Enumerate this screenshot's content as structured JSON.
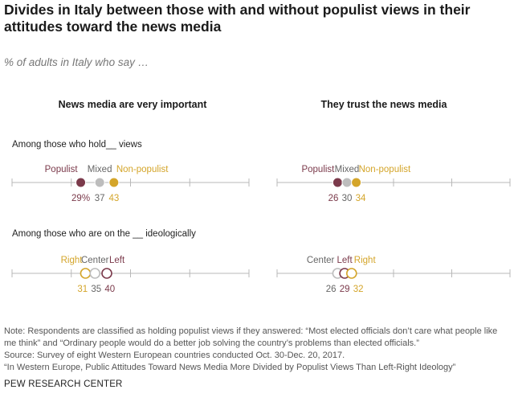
{
  "header": {
    "title": "Divides in Italy between those with and without populist views in their attitudes toward the news media",
    "subtitle": "% of adults in Italy who say …"
  },
  "panels": {
    "left_title": "News media are very important",
    "right_title": "They trust the news media"
  },
  "rows": {
    "populist_label": "Among those who hold__ views",
    "ideology_label": "Among those who are on the __ ideologically"
  },
  "colors": {
    "populist": "#7b3a4b",
    "mixed": "#bdbdbd",
    "non_populist": "#d4a52a",
    "right": "#d4a52a",
    "center": "#bdbdbd",
    "left": "#7b3a4b",
    "axis": "#b8b8b8"
  },
  "chart_data": [
    {
      "type": "scatter",
      "title": "News media are very important",
      "group": "Among those who hold__ views",
      "xlim": [
        0,
        100
      ],
      "series": [
        {
          "name": "Populist",
          "value": 29,
          "value_label": "29%",
          "color": "#7b3a4b",
          "style": "filled"
        },
        {
          "name": "Mixed",
          "value": 37,
          "value_label": "37",
          "color": "#bdbdbd",
          "style": "filled"
        },
        {
          "name": "Non-populist",
          "value": 43,
          "value_label": "43",
          "color": "#d4a52a",
          "style": "filled"
        }
      ]
    },
    {
      "type": "scatter",
      "title": "They trust the news media",
      "group": "Among those who hold__ views",
      "xlim": [
        0,
        100
      ],
      "series": [
        {
          "name": "Populist",
          "value": 26,
          "value_label": "26",
          "color": "#7b3a4b",
          "style": "filled"
        },
        {
          "name": "Mixed",
          "value": 30,
          "value_label": "30",
          "color": "#bdbdbd",
          "style": "filled"
        },
        {
          "name": "Non-populist",
          "value": 34,
          "value_label": "34",
          "color": "#d4a52a",
          "style": "filled"
        }
      ]
    },
    {
      "type": "scatter",
      "title": "News media are very important",
      "group": "Among those who are on the __ ideologically",
      "xlim": [
        0,
        100
      ],
      "series": [
        {
          "name": "Right",
          "value": 31,
          "value_label": "31",
          "color": "#d4a52a",
          "style": "open"
        },
        {
          "name": "Center",
          "value": 35,
          "value_label": "35",
          "color": "#bdbdbd",
          "style": "open"
        },
        {
          "name": "Left",
          "value": 40,
          "value_label": "40",
          "color": "#7b3a4b",
          "style": "open"
        }
      ]
    },
    {
      "type": "scatter",
      "title": "They trust the news media",
      "group": "Among those who are on the __ ideologically",
      "xlim": [
        0,
        100
      ],
      "series": [
        {
          "name": "Center",
          "value": 26,
          "value_label": "26",
          "color": "#bdbdbd",
          "style": "open"
        },
        {
          "name": "Left",
          "value": 29,
          "value_label": "29",
          "color": "#7b3a4b",
          "style": "open"
        },
        {
          "name": "Right",
          "value": 32,
          "value_label": "32",
          "color": "#d4a52a",
          "style": "open"
        }
      ]
    }
  ],
  "footer": {
    "note1": "Note: Respondents are classified as holding populist views if they answered: “Most elected officials don’t care what people like me think” and “Ordinary people would do a better job solving the country’s problems than elected officials.”",
    "source": "Source: Survey of eight Western European countries conducted Oct. 30-Dec. 20, 2017.",
    "report": "“In Western Europe, Public Attitudes Toward News Media More Divided by Populist Views Than Left-Right Ideology”",
    "credit": "PEW RESEARCH CENTER"
  }
}
